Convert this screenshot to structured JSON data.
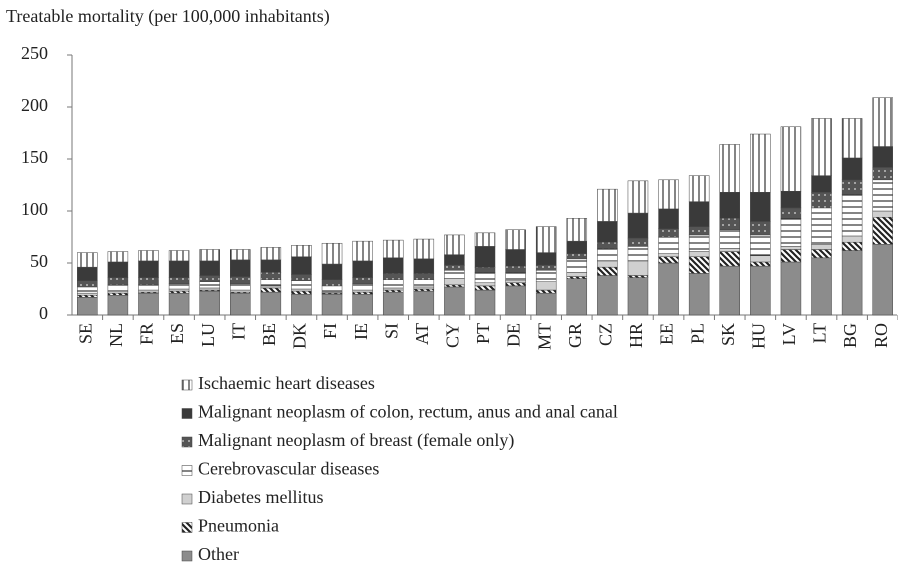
{
  "chart_data": {
    "type": "stacked-bar",
    "title": "Treatable mortality (per 100,000 inhabitants)",
    "categories": [
      "SE",
      "NL",
      "FR",
      "ES",
      "LU",
      "IT",
      "BE",
      "DK",
      "FI",
      "IE",
      "SI",
      "AT",
      "CY",
      "PT",
      "DE",
      "MT",
      "GR",
      "CZ",
      "HR",
      "EE",
      "PL",
      "SK",
      "HU",
      "LV",
      "LT",
      "BG",
      "RO"
    ],
    "ylim": [
      0,
      250
    ],
    "yticks": [
      0,
      50,
      100,
      150,
      200,
      250
    ],
    "series": [
      {
        "name": "Ischaemic heart diseases",
        "color": "#ffffff",
        "pattern": "vertical",
        "values": [
          14,
          10,
          10,
          10,
          11,
          10,
          12,
          11,
          20,
          19,
          17,
          19,
          19,
          13,
          19,
          25,
          22,
          31,
          31,
          28,
          25,
          46,
          56,
          62,
          55,
          38,
          47
        ]
      },
      {
        "name": "Malignant neoplasm of colon, rectum, anus and anal canal",
        "color": "#3a3a3a",
        "pattern": "solid",
        "values": [
          13,
          15,
          16,
          16,
          14,
          16,
          12,
          17,
          15,
          16,
          15,
          14,
          10,
          20,
          16,
          12,
          12,
          20,
          24,
          19,
          24,
          25,
          28,
          16,
          16,
          21,
          20
        ]
      },
      {
        "name": "Malignant neoplasm of breast (female only)",
        "color": "#555555",
        "pattern": "dots",
        "values": [
          6,
          7,
          7,
          6,
          6,
          7,
          7,
          6,
          6,
          6,
          6,
          6,
          5,
          5,
          6,
          5,
          5,
          6,
          8,
          8,
          8,
          11,
          13,
          10,
          15,
          14,
          12
        ]
      },
      {
        "name": "Cerebrovascular diseases",
        "color": "#ffffff",
        "pattern": "horizontal",
        "values": [
          6,
          6,
          5,
          5,
          6,
          6,
          6,
          8,
          6,
          6,
          8,
          7,
          8,
          10,
          8,
          11,
          13,
          12,
          14,
          16,
          16,
          18,
          20,
          27,
          35,
          40,
          30
        ]
      },
      {
        "name": "Diabetes mellitus",
        "color": "#d0d0d0",
        "pattern": "solid",
        "values": [
          2,
          2,
          2,
          2,
          2,
          2,
          2,
          2,
          1,
          2,
          2,
          2,
          6,
          3,
          2,
          8,
          4,
          6,
          14,
          3,
          5,
          3,
          6,
          3,
          5,
          6,
          6
        ]
      },
      {
        "name": "Pneumonia",
        "color": "#ffffff",
        "pattern": "diagonal",
        "values": [
          2,
          2,
          1,
          2,
          1,
          1,
          4,
          3,
          1,
          2,
          2,
          2,
          2,
          4,
          3,
          3,
          2,
          8,
          2,
          6,
          16,
          14,
          4,
          12,
          8,
          8,
          26
        ]
      },
      {
        "name": "Other",
        "color": "#8c8c8c",
        "pattern": "solid",
        "values": [
          17,
          19,
          21,
          21,
          23,
          21,
          22,
          20,
          20,
          20,
          22,
          23,
          27,
          24,
          28,
          21,
          35,
          38,
          36,
          50,
          40,
          47,
          47,
          51,
          55,
          62,
          68
        ]
      }
    ]
  }
}
